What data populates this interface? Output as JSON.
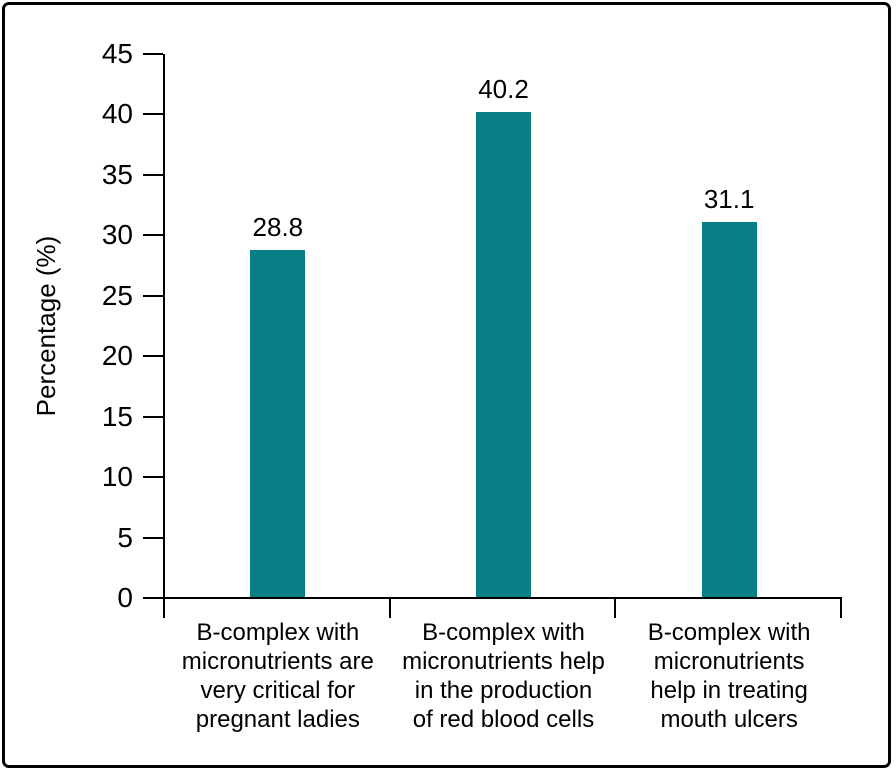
{
  "chart_data": {
    "type": "bar",
    "title": "",
    "xlabel": "",
    "ylabel": "Percentage (%)",
    "categories": [
      "B-complex with micronutrients are very critical for pregnant ladies",
      "B-complex with micronutrients help in the production of red blood cells",
      "B-complex with micronutrients help in treating mouth ulcers"
    ],
    "categories_wrapped": [
      [
        "B-complex with",
        "micronutrients are",
        "very critical for",
        "pregnant ladies"
      ],
      [
        "B-complex with",
        "micronutrients help",
        "in the production",
        "of red blood cells"
      ],
      [
        "B-complex with",
        "micronutrients",
        "help in treating",
        "mouth ulcers"
      ]
    ],
    "values": [
      28.8,
      40.2,
      31.1
    ],
    "value_labels": [
      "28.8",
      "40.2",
      "31.1"
    ],
    "ylim": [
      0,
      45
    ],
    "ytick_step": 5,
    "ytick_labels": [
      "0",
      "5",
      "10",
      "15",
      "20",
      "25",
      "30",
      "35",
      "40",
      "45"
    ],
    "grid": false,
    "legend": false,
    "colors": {
      "bar": "#077f85",
      "axis": "#000000",
      "text": "#000000",
      "background": "#ffffff"
    }
  }
}
